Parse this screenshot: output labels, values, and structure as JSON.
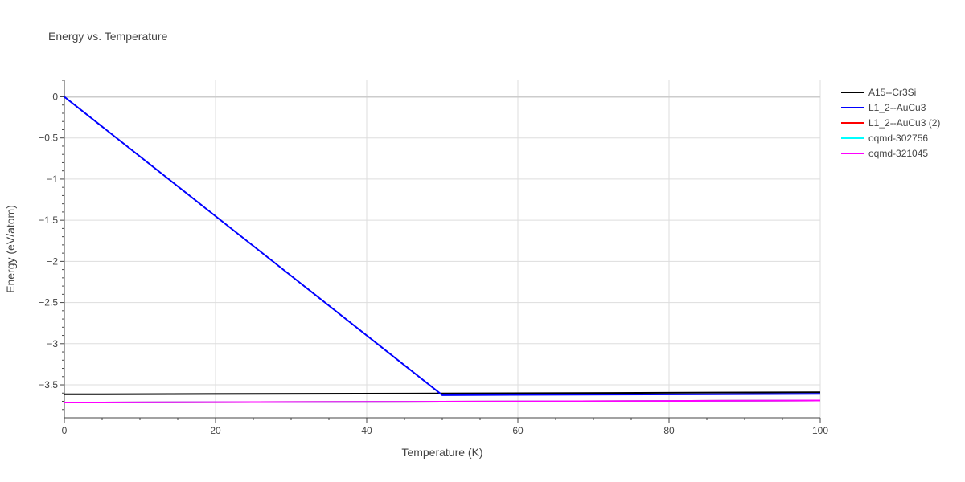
{
  "chart_data": {
    "type": "line",
    "title": "Energy vs. Temperature",
    "xlabel": "Temperature (K)",
    "ylabel": "Energy (eV/atom)",
    "xlim": [
      0,
      100
    ],
    "ylim": [
      -3.9,
      0.2
    ],
    "x_ticks": [
      0,
      20,
      40,
      60,
      80,
      100
    ],
    "y_ticks": [
      0,
      -0.5,
      -1,
      -1.5,
      -2,
      -2.5,
      -3,
      -3.5
    ],
    "y_tick_labels": [
      "0",
      "−0.5",
      "−1",
      "−1.5",
      "−2",
      "−2.5",
      "−3",
      "−3.5"
    ],
    "grid": true,
    "legend_position": "top-right",
    "series": [
      {
        "name": "A15--Cr3Si",
        "color": "#000000",
        "x": [
          0,
          50,
          100
        ],
        "y": [
          -3.615,
          -3.605,
          -3.59
        ]
      },
      {
        "name": "L1_2--AuCu3",
        "color": "#0000ff",
        "x": [
          0,
          50,
          100
        ],
        "y": [
          0,
          -3.625,
          -3.61
        ]
      },
      {
        "name": "L1_2--AuCu3 (2)",
        "color": "#ff0000",
        "x": [
          0,
          50,
          100
        ],
        "y": [
          -3.715,
          -3.705,
          -3.69
        ]
      },
      {
        "name": "oqmd-302756",
        "color": "#00ffff",
        "x": [
          0,
          50,
          100
        ],
        "y": [
          -3.715,
          -3.705,
          -3.69
        ]
      },
      {
        "name": "oqmd-321045",
        "color": "#ff00ff",
        "x": [
          0,
          50,
          100
        ],
        "y": [
          -3.715,
          -3.705,
          -3.69
        ]
      }
    ]
  }
}
